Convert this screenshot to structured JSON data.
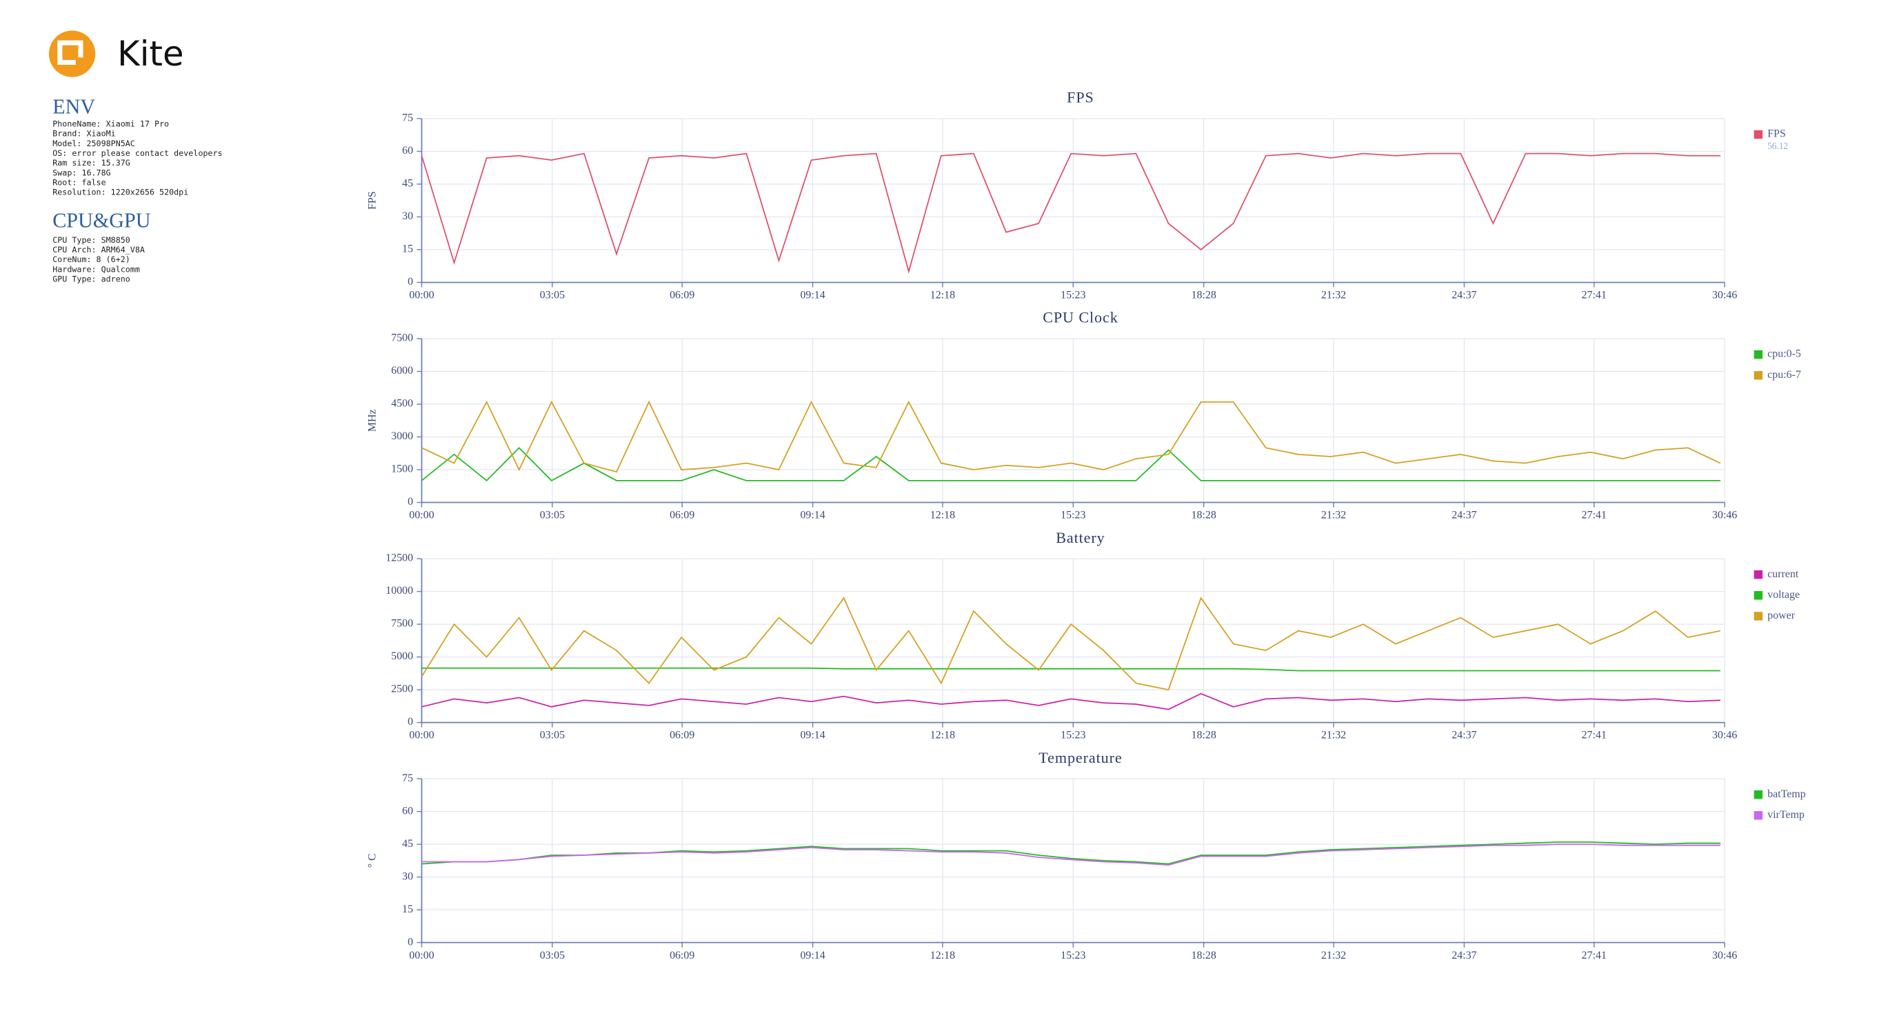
{
  "logo": {
    "text": "Kite"
  },
  "env": {
    "title": "ENV",
    "lines": [
      "PhoneName: Xiaomi 17 Pro",
      "Brand: XiaoMi",
      "Model: 25098PN5AC",
      "OS: error please contact developers",
      "Ram size: 15.37G",
      "Swap: 16.78G",
      "Root: false",
      "Resolution: 1220x2656 520dpi"
    ]
  },
  "cpu_gpu": {
    "title": "CPU&GPU",
    "lines": [
      "CPU Type: SM8850",
      "CPU Arch: ARM64_V8A",
      "CoreNum: 8 (6+2)",
      "Hardware: Qualcomm",
      "GPU Type: adreno"
    ]
  },
  "chart_data": [
    {
      "type": "line",
      "title": "FPS",
      "ylabel": "FPS",
      "grid": true,
      "x": [
        0,
        46,
        92,
        138,
        184,
        230,
        276,
        322,
        368,
        414,
        460,
        506,
        552,
        598,
        644,
        690,
        736,
        782,
        828,
        874,
        920,
        966,
        1012,
        1058,
        1104,
        1150,
        1196,
        1242,
        1288,
        1334,
        1380,
        1426,
        1472,
        1518,
        1564,
        1610,
        1656,
        1702,
        1748,
        1794,
        1840
      ],
      "xlim": [
        0,
        1846
      ],
      "xticks": [
        {
          "value": 0,
          "label": "00:00"
        },
        {
          "value": 185,
          "label": "03:05"
        },
        {
          "value": 369,
          "label": "06:09"
        },
        {
          "value": 554,
          "label": "09:14"
        },
        {
          "value": 738,
          "label": "12:18"
        },
        {
          "value": 923,
          "label": "15:23"
        },
        {
          "value": 1108,
          "label": "18:28"
        },
        {
          "value": 1292,
          "label": "21:32"
        },
        {
          "value": 1477,
          "label": "24:37"
        },
        {
          "value": 1661,
          "label": "27:41"
        },
        {
          "value": 1846,
          "label": "30:46"
        }
      ],
      "ylim": [
        0,
        75
      ],
      "yticks": [
        0,
        15,
        30,
        45,
        60,
        75
      ],
      "legend_note": "56.12",
      "series": [
        {
          "name": "FPS",
          "color": "#e0506a",
          "values": [
            58,
            9,
            57,
            58,
            56,
            59,
            13,
            57,
            58,
            57,
            59,
            10,
            56,
            58,
            59,
            5,
            58,
            59,
            23,
            27,
            59,
            58,
            59,
            27,
            15,
            27,
            58,
            59,
            57,
            59,
            58,
            59,
            59,
            27,
            59,
            59,
            58,
            59,
            59,
            58,
            58
          ]
        }
      ]
    },
    {
      "type": "line",
      "title": "CPU Clock",
      "ylabel": "MHz",
      "grid": true,
      "x": [
        0,
        46,
        92,
        138,
        184,
        230,
        276,
        322,
        368,
        414,
        460,
        506,
        552,
        598,
        644,
        690,
        736,
        782,
        828,
        874,
        920,
        966,
        1012,
        1058,
        1104,
        1150,
        1196,
        1242,
        1288,
        1334,
        1380,
        1426,
        1472,
        1518,
        1564,
        1610,
        1656,
        1702,
        1748,
        1794,
        1840
      ],
      "xlim": [
        0,
        1846
      ],
      "xticks": [
        {
          "value": 0,
          "label": "00:00"
        },
        {
          "value": 185,
          "label": "03:05"
        },
        {
          "value": 369,
          "label": "06:09"
        },
        {
          "value": 554,
          "label": "09:14"
        },
        {
          "value": 738,
          "label": "12:18"
        },
        {
          "value": 923,
          "label": "15:23"
        },
        {
          "value": 1108,
          "label": "18:28"
        },
        {
          "value": 1292,
          "label": "21:32"
        },
        {
          "value": 1477,
          "label": "24:37"
        },
        {
          "value": 1661,
          "label": "27:41"
        },
        {
          "value": 1846,
          "label": "30:46"
        }
      ],
      "ylim": [
        0,
        7500
      ],
      "yticks": [
        0,
        1500,
        3000,
        4500,
        6000,
        7500
      ],
      "series": [
        {
          "name": "cpu:0-5",
          "color": "#22bb22",
          "values": [
            1000,
            2200,
            1000,
            2500,
            1000,
            1800,
            1000,
            1000,
            1000,
            1500,
            1000,
            1000,
            1000,
            1000,
            2100,
            1000,
            1000,
            1000,
            1000,
            1000,
            1000,
            1000,
            1000,
            2400,
            1000,
            1000,
            1000,
            1000,
            1000,
            1000,
            1000,
            1000,
            1000,
            1000,
            1000,
            1000,
            1000,
            1000,
            1000,
            1000,
            1000
          ]
        },
        {
          "name": "cpu:6-7",
          "color": "#d4a020",
          "values": [
            2500,
            1800,
            4600,
            1500,
            4600,
            1800,
            1400,
            4600,
            1500,
            1600,
            1800,
            1500,
            4600,
            1800,
            1600,
            4600,
            1800,
            1500,
            1700,
            1600,
            1800,
            1500,
            2000,
            2200,
            4600,
            4600,
            2500,
            2200,
            2100,
            2300,
            1800,
            2000,
            2200,
            1900,
            1800,
            2100,
            2300,
            2000,
            2400,
            2500,
            1800
          ]
        }
      ]
    },
    {
      "type": "line",
      "title": "Battery",
      "grid": true,
      "x": [
        0,
        46,
        92,
        138,
        184,
        230,
        276,
        322,
        368,
        414,
        460,
        506,
        552,
        598,
        644,
        690,
        736,
        782,
        828,
        874,
        920,
        966,
        1012,
        1058,
        1104,
        1150,
        1196,
        1242,
        1288,
        1334,
        1380,
        1426,
        1472,
        1518,
        1564,
        1610,
        1656,
        1702,
        1748,
        1794,
        1840
      ],
      "xlim": [
        0,
        1846
      ],
      "xticks": [
        {
          "value": 0,
          "label": "00:00"
        },
        {
          "value": 185,
          "label": "03:05"
        },
        {
          "value": 369,
          "label": "06:09"
        },
        {
          "value": 554,
          "label": "09:14"
        },
        {
          "value": 738,
          "label": "12:18"
        },
        {
          "value": 923,
          "label": "15:23"
        },
        {
          "value": 1108,
          "label": "18:28"
        },
        {
          "value": 1292,
          "label": "21:32"
        },
        {
          "value": 1477,
          "label": "24:37"
        },
        {
          "value": 1661,
          "label": "27:41"
        },
        {
          "value": 1846,
          "label": "30:46"
        }
      ],
      "ylim": [
        0,
        12500
      ],
      "yticks": [
        0,
        2500,
        5000,
        7500,
        10000,
        12500
      ],
      "series": [
        {
          "name": "current",
          "color": "#cc22aa",
          "values": [
            1200,
            1800,
            1500,
            1900,
            1200,
            1700,
            1500,
            1300,
            1800,
            1600,
            1400,
            1900,
            1600,
            2000,
            1500,
            1700,
            1400,
            1600,
            1700,
            1300,
            1800,
            1500,
            1400,
            1000,
            2200,
            1200,
            1800,
            1900,
            1700,
            1800,
            1600,
            1800,
            1700,
            1800,
            1900,
            1700,
            1800,
            1700,
            1800,
            1600,
            1700
          ]
        },
        {
          "name": "voltage",
          "color": "#22bb22",
          "values": [
            4150,
            4150,
            4150,
            4150,
            4150,
            4150,
            4150,
            4150,
            4150,
            4150,
            4150,
            4150,
            4150,
            4100,
            4100,
            4100,
            4100,
            4100,
            4100,
            4100,
            4100,
            4100,
            4100,
            4100,
            4100,
            4100,
            4050,
            3950,
            3950,
            3950,
            3950,
            3950,
            3950,
            3950,
            3950,
            3950,
            3950,
            3950,
            3950,
            3950,
            3950
          ]
        },
        {
          "name": "power",
          "color": "#d4a020",
          "values": [
            3500,
            7500,
            5000,
            8000,
            4000,
            7000,
            5500,
            3000,
            6500,
            4000,
            5000,
            8000,
            6000,
            9500,
            4000,
            7000,
            3000,
            8500,
            6000,
            4000,
            7500,
            5500,
            3000,
            2500,
            9500,
            6000,
            5500,
            7000,
            6500,
            7500,
            6000,
            7000,
            8000,
            6500,
            7000,
            7500,
            6000,
            7000,
            8500,
            6500,
            7000
          ]
        }
      ]
    },
    {
      "type": "line",
      "title": "Temperature",
      "ylabel": "° C",
      "grid": true,
      "x": [
        0,
        46,
        92,
        138,
        184,
        230,
        276,
        322,
        368,
        414,
        460,
        506,
        552,
        598,
        644,
        690,
        736,
        782,
        828,
        874,
        920,
        966,
        1012,
        1058,
        1104,
        1150,
        1196,
        1242,
        1288,
        1334,
        1380,
        1426,
        1472,
        1518,
        1564,
        1610,
        1656,
        1702,
        1748,
        1794,
        1840
      ],
      "xlim": [
        0,
        1846
      ],
      "xticks": [
        {
          "value": 0,
          "label": "00:00"
        },
        {
          "value": 185,
          "label": "03:05"
        },
        {
          "value": 369,
          "label": "06:09"
        },
        {
          "value": 554,
          "label": "09:14"
        },
        {
          "value": 738,
          "label": "12:18"
        },
        {
          "value": 923,
          "label": "15:23"
        },
        {
          "value": 1108,
          "label": "18:28"
        },
        {
          "value": 1292,
          "label": "21:32"
        },
        {
          "value": 1477,
          "label": "24:37"
        },
        {
          "value": 1661,
          "label": "27:41"
        },
        {
          "value": 1846,
          "label": "30:46"
        }
      ],
      "ylim": [
        0,
        75
      ],
      "yticks": [
        0,
        15,
        30,
        45,
        60,
        75
      ],
      "series": [
        {
          "name": "batTemp",
          "color": "#22bb22",
          "values": [
            36,
            37,
            37,
            38,
            40,
            40,
            41,
            41,
            42,
            41.5,
            42,
            43,
            44,
            43,
            43,
            43,
            42,
            42,
            42,
            40,
            38.5,
            37.5,
            37,
            36,
            40,
            40,
            40,
            41.5,
            42.5,
            43,
            43.5,
            44,
            44.5,
            45,
            45.5,
            46,
            46,
            45.5,
            45,
            45.5,
            45.5
          ]
        },
        {
          "name": "virTemp",
          "color": "#cc66ee",
          "values": [
            37,
            37,
            37,
            38,
            39.5,
            40,
            40.5,
            41,
            41.5,
            41,
            41.5,
            42.5,
            43.5,
            42.5,
            42.5,
            42,
            41.5,
            41.5,
            41,
            39,
            38,
            37,
            36.5,
            35.5,
            39.5,
            39.5,
            39.5,
            41,
            42,
            42.5,
            43,
            43.5,
            44,
            44.5,
            44.5,
            45,
            45,
            44.5,
            44.5,
            44.5,
            44.5
          ]
        }
      ]
    }
  ]
}
